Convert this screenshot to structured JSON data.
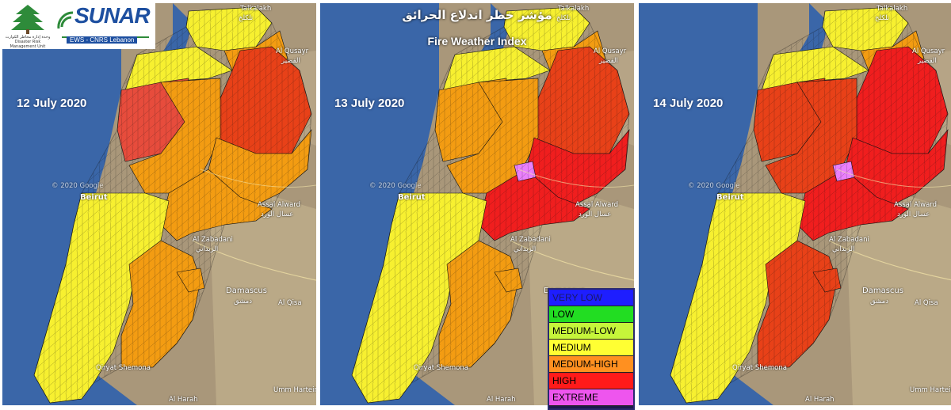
{
  "header": {
    "title_ar": "مؤشر خطر اندلاع الحرائق",
    "title_en": "Fire Weather Index"
  },
  "logos": {
    "cedar_caption": "وحدة إدارة مخاطر الكوارث Disaster Risk Management Unit",
    "sunar_name": "SUNAR",
    "sunar_sub": "EWS - CNRS Lebanon"
  },
  "panels": [
    {
      "date": "12 July 2020",
      "zones": {
        "north": "#f7f030",
        "akkar_east": "#f39c12",
        "hermel": "#e84118",
        "bekaa_north": "#f39c12",
        "mountain": "#f39c12",
        "metn_west": "#e74c3c",
        "bekaa_central": "#f39c12",
        "south": "#f7f030",
        "south_east": "#f39c12",
        "extreme": null
      }
    },
    {
      "date": "13 July 2020",
      "zones": {
        "north": "#f7f030",
        "akkar_east": "#f39c12",
        "hermel": "#e84118",
        "bekaa_north": "#f01e1e",
        "mountain": "#f39c12",
        "metn_west": "#f39c12",
        "bekaa_central": "#f01e1e",
        "south": "#f7f030",
        "south_east": "#f39c12",
        "extreme": "#ea80fc"
      }
    },
    {
      "date": "14 July 2020",
      "zones": {
        "north": "#f7f030",
        "akkar_east": "#f39c12",
        "hermel": "#f01e1e",
        "bekaa_north": "#f01e1e",
        "mountain": "#e84118",
        "metn_west": "#e84118",
        "bekaa_central": "#f01e1e",
        "south": "#f7f030",
        "south_east": "#e84118",
        "extreme": "#ea80fc"
      }
    }
  ],
  "places": {
    "talkalakh": "Talkalakh",
    "talkalakh_ar": "تلكلخ",
    "alqusair": "Al Qusayr",
    "alqusair_ar": "القصير",
    "beirut": "Beirut",
    "assal": "Assal Alward",
    "assal_ar": "عسال الورد",
    "zabadani": "Al Zabadani",
    "zabadani_ar": "الزبداني",
    "damascus": "Damascus",
    "damascus_ar": "دمشق",
    "alqisa": "Al Qisa",
    "alharah": "Al Harah",
    "qiryat": "Qiryat Shemona",
    "ummharetein": "Umm Hartein",
    "copyright": "© 2020 Google"
  },
  "legend": [
    {
      "label": "VERY LOW",
      "color": "#1e1eff"
    },
    {
      "label": "LOW",
      "color": "#22dd22"
    },
    {
      "label": "MEDIUM-LOW",
      "color": "#c6f53a"
    },
    {
      "label": "MEDIUM",
      "color": "#ffff33"
    },
    {
      "label": "MEDIUM-HIGH",
      "color": "#ff9020"
    },
    {
      "label": "HIGH",
      "color": "#ff1a1a"
    },
    {
      "label": "EXTREME",
      "color": "#ee55ee"
    }
  ]
}
